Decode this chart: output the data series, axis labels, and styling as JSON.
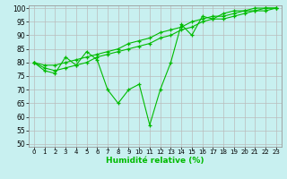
{
  "xlabel": "Humidité relative (%)",
  "bg_color": "#c8f0f0",
  "line_color": "#00bb00",
  "grid_color": "#bbbbbb",
  "xlim": [
    -0.5,
    23.5
  ],
  "ylim": [
    49,
    101
  ],
  "yticks": [
    50,
    55,
    60,
    65,
    70,
    75,
    80,
    85,
    90,
    95,
    100
  ],
  "xticks": [
    0,
    1,
    2,
    3,
    4,
    5,
    6,
    7,
    8,
    9,
    10,
    11,
    12,
    13,
    14,
    15,
    16,
    17,
    18,
    19,
    20,
    21,
    22,
    23
  ],
  "series": [
    {
      "x": [
        0,
        1,
        2,
        3,
        4,
        5,
        6,
        7,
        8,
        9,
        10,
        11,
        12,
        13,
        14,
        15,
        16,
        17,
        18,
        19,
        20,
        21,
        22,
        23
      ],
      "y": [
        80,
        77,
        76,
        82,
        79,
        84,
        81,
        70,
        65,
        70,
        72,
        57,
        70,
        80,
        94,
        90,
        97,
        96,
        98,
        99,
        99,
        100,
        100,
        100
      ]
    },
    {
      "x": [
        0,
        1,
        2,
        3,
        4,
        5,
        6,
        7,
        8,
        9,
        10,
        11,
        12,
        13,
        14,
        15,
        16,
        17,
        18,
        19,
        20,
        21,
        22,
        23
      ],
      "y": [
        80,
        79,
        79,
        80,
        81,
        82,
        83,
        84,
        85,
        87,
        88,
        89,
        91,
        92,
        93,
        95,
        96,
        97,
        97,
        98,
        99,
        99,
        100,
        100
      ]
    },
    {
      "x": [
        0,
        1,
        2,
        3,
        4,
        5,
        6,
        7,
        8,
        9,
        10,
        11,
        12,
        13,
        14,
        15,
        16,
        17,
        18,
        19,
        20,
        21,
        22,
        23
      ],
      "y": [
        80,
        78,
        77,
        78,
        79,
        80,
        82,
        83,
        84,
        85,
        86,
        87,
        89,
        90,
        92,
        93,
        95,
        96,
        96,
        97,
        98,
        99,
        99,
        100
      ]
    }
  ],
  "figsize": [
    3.2,
    2.0
  ],
  "dpi": 100
}
